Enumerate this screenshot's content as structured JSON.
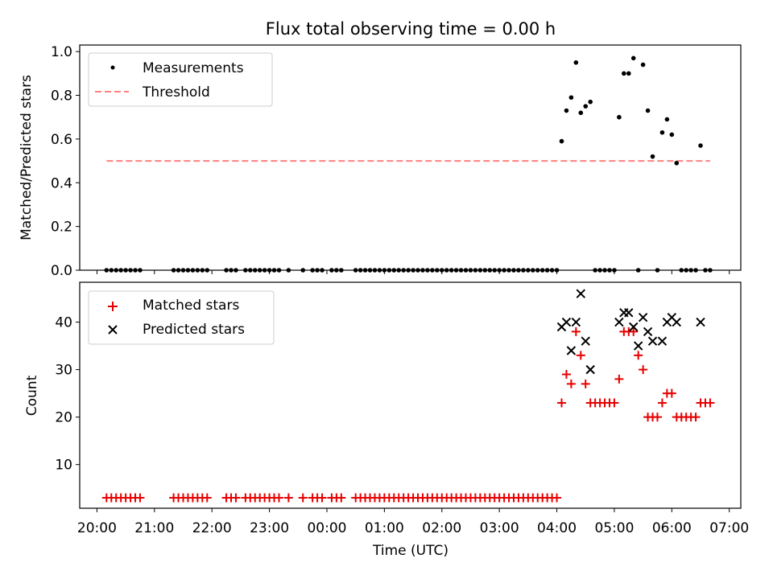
{
  "title": "Flux total observing time = 0.00 h",
  "xlabel": "Time (UTC)",
  "colors": {
    "measurement": "#000000",
    "threshold": "#ff8080",
    "matched": "#e60000",
    "predicted": "#000000"
  },
  "chart_data": [
    {
      "type": "scatter",
      "title": "Flux total observing time = 0.00 h",
      "xlabel": "",
      "ylabel": "Matched/Predicted stars",
      "xlim": [
        "19:42",
        "07:12"
      ],
      "ylim": [
        0,
        1.03
      ],
      "yticks": [
        0.0,
        0.2,
        0.4,
        0.6,
        0.8,
        1.0
      ],
      "ytick_labels": [
        "0.0",
        "0.2",
        "0.4",
        "0.6",
        "0.8",
        "1.0"
      ],
      "legend": {
        "placement": "top-left",
        "entries": [
          "Measurements",
          "Threshold"
        ]
      },
      "series": [
        {
          "name": "Measurements",
          "marker": "dot",
          "x": [
            "20:10",
            "20:15",
            "20:20",
            "20:25",
            "20:30",
            "20:35",
            "20:40",
            "20:45",
            "21:20",
            "21:25",
            "21:30",
            "21:35",
            "21:40",
            "21:45",
            "21:50",
            "21:55",
            "22:15",
            "22:20",
            "22:25",
            "22:35",
            "22:40",
            "22:45",
            "22:50",
            "22:55",
            "23:00",
            "23:05",
            "23:10",
            "23:20",
            "23:35",
            "23:45",
            "23:50",
            "23:55",
            "00:05",
            "00:10",
            "00:15",
            "00:30",
            "00:35",
            "00:40",
            "00:45",
            "00:50",
            "00:55",
            "01:00",
            "01:05",
            "01:10",
            "01:15",
            "01:20",
            "01:25",
            "01:30",
            "01:35",
            "01:40",
            "01:45",
            "01:50",
            "01:55",
            "02:00",
            "02:05",
            "02:10",
            "02:15",
            "02:20",
            "02:25",
            "02:30",
            "02:35",
            "02:40",
            "02:45",
            "02:50",
            "02:55",
            "03:00",
            "03:05",
            "03:10",
            "03:15",
            "03:20",
            "03:25",
            "03:30",
            "03:35",
            "03:40",
            "03:45",
            "03:50",
            "03:55",
            "04:00",
            "04:05",
            "04:10",
            "04:15",
            "04:20",
            "04:25",
            "04:30",
            "04:35",
            "04:40",
            "04:45",
            "04:50",
            "04:55",
            "05:00",
            "05:05",
            "05:10",
            "05:15",
            "05:20",
            "05:25",
            "05:30",
            "05:35",
            "05:40",
            "05:45",
            "05:50",
            "05:55",
            "06:00",
            "06:05",
            "06:10",
            "06:15",
            "06:20",
            "06:25",
            "06:30",
            "06:35",
            "06:40"
          ],
          "y": [
            0,
            0,
            0,
            0,
            0,
            0,
            0,
            0,
            0,
            0,
            0,
            0,
            0,
            0,
            0,
            0,
            0,
            0,
            0,
            0,
            0,
            0,
            0,
            0,
            0,
            0,
            0,
            0,
            0,
            0,
            0,
            0,
            0,
            0,
            0,
            0,
            0,
            0,
            0,
            0,
            0,
            0,
            0,
            0,
            0,
            0,
            0,
            0,
            0,
            0,
            0,
            0,
            0,
            0,
            0,
            0,
            0,
            0,
            0,
            0,
            0,
            0,
            0,
            0,
            0,
            0,
            0,
            0,
            0,
            0,
            0,
            0,
            0,
            0,
            0,
            0,
            0,
            0,
            0.59,
            0.73,
            0.79,
            0.95,
            0.72,
            0.75,
            0.77,
            0,
            0,
            0,
            0,
            0,
            0.7,
            0.9,
            0.9,
            0.97,
            0,
            0.94,
            0.73,
            0.52,
            0,
            0.63,
            0.69,
            0.62,
            0.49,
            0,
            0,
            0,
            0,
            0.57,
            0,
            0
          ]
        },
        {
          "name": "Threshold",
          "style": "dashed",
          "x": [
            "20:10",
            "06:40"
          ],
          "y": [
            0.5,
            0.5
          ]
        }
      ]
    },
    {
      "type": "scatter",
      "xlabel": "Time (UTC)",
      "ylabel": "Count",
      "xlim": [
        "19:42",
        "07:12"
      ],
      "xticks": [
        "20:00",
        "21:00",
        "22:00",
        "23:00",
        "00:00",
        "01:00",
        "02:00",
        "03:00",
        "04:00",
        "05:00",
        "06:00",
        "07:00"
      ],
      "ylim": [
        0.8,
        48.4
      ],
      "yticks": [
        10,
        20,
        30,
        40
      ],
      "ytick_labels": [
        "10",
        "20",
        "30",
        "40"
      ],
      "legend": {
        "placement": "top-left",
        "entries": [
          "Matched stars",
          "Predicted stars"
        ]
      },
      "series": [
        {
          "name": "Matched stars",
          "marker": "plus",
          "x": [
            "20:10",
            "20:15",
            "20:20",
            "20:25",
            "20:30",
            "20:35",
            "20:40",
            "20:45",
            "21:20",
            "21:25",
            "21:30",
            "21:35",
            "21:40",
            "21:45",
            "21:50",
            "21:55",
            "22:15",
            "22:20",
            "22:25",
            "22:35",
            "22:40",
            "22:45",
            "22:50",
            "22:55",
            "23:00",
            "23:05",
            "23:10",
            "23:20",
            "23:35",
            "23:45",
            "23:50",
            "23:55",
            "00:05",
            "00:10",
            "00:15",
            "00:30",
            "00:35",
            "00:40",
            "00:45",
            "00:50",
            "00:55",
            "01:00",
            "01:05",
            "01:10",
            "01:15",
            "01:20",
            "01:25",
            "01:30",
            "01:35",
            "01:40",
            "01:45",
            "01:50",
            "01:55",
            "02:00",
            "02:05",
            "02:10",
            "02:15",
            "02:20",
            "02:25",
            "02:30",
            "02:35",
            "02:40",
            "02:45",
            "02:50",
            "02:55",
            "03:00",
            "03:05",
            "03:10",
            "03:15",
            "03:20",
            "03:25",
            "03:30",
            "03:35",
            "03:40",
            "03:45",
            "03:50",
            "03:55",
            "04:00",
            "04:05",
            "04:10",
            "04:15",
            "04:20",
            "04:25",
            "04:30",
            "04:35",
            "04:40",
            "04:45",
            "04:50",
            "04:55",
            "05:00",
            "05:05",
            "05:10",
            "05:15",
            "05:20",
            "05:25",
            "05:30",
            "05:35",
            "05:40",
            "05:45",
            "05:50",
            "05:55",
            "06:00",
            "06:05",
            "06:10",
            "06:15",
            "06:20",
            "06:25",
            "06:30",
            "06:35",
            "06:40"
          ],
          "y": [
            3,
            3,
            3,
            3,
            3,
            3,
            3,
            3,
            3,
            3,
            3,
            3,
            3,
            3,
            3,
            3,
            3,
            3,
            3,
            3,
            3,
            3,
            3,
            3,
            3,
            3,
            3,
            3,
            3,
            3,
            3,
            3,
            3,
            3,
            3,
            3,
            3,
            3,
            3,
            3,
            3,
            3,
            3,
            3,
            3,
            3,
            3,
            3,
            3,
            3,
            3,
            3,
            3,
            3,
            3,
            3,
            3,
            3,
            3,
            3,
            3,
            3,
            3,
            3,
            3,
            3,
            3,
            3,
            3,
            3,
            3,
            3,
            3,
            3,
            3,
            3,
            3,
            3,
            23,
            29,
            27,
            38,
            33,
            27,
            23,
            23,
            23,
            23,
            23,
            23,
            28,
            38,
            38,
            38,
            33,
            30,
            20,
            20,
            20,
            23,
            25,
            25,
            20,
            20,
            20,
            20,
            20,
            23,
            23,
            23
          ]
        },
        {
          "name": "Predicted stars",
          "marker": "x",
          "x": [
            "04:05",
            "04:10",
            "04:15",
            "04:20",
            "04:25",
            "04:30",
            "04:35",
            "05:05",
            "05:10",
            "05:15",
            "05:20",
            "05:25",
            "05:30",
            "05:35",
            "05:40",
            "05:50",
            "05:55",
            "06:00",
            "06:05",
            "06:30"
          ],
          "y": [
            39,
            40,
            34,
            40,
            46,
            36,
            30,
            40,
            42,
            42,
            39,
            35,
            41,
            38,
            36,
            36,
            40,
            41,
            40,
            40
          ]
        }
      ]
    }
  ]
}
